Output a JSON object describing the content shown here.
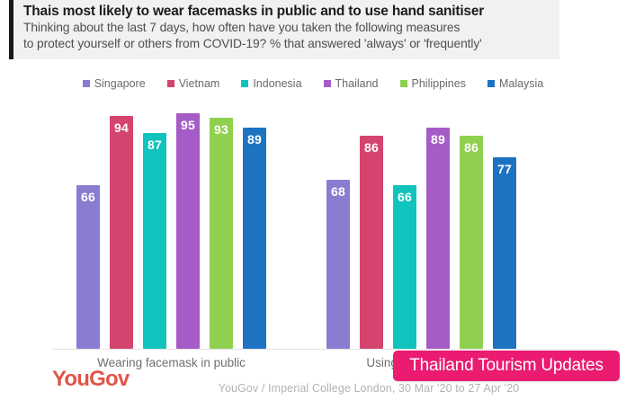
{
  "header": {
    "title": "Thais most likely to wear facemasks in public and to use hand sanitiser",
    "subtitle_line1": "Thinking about the last 7 days, how often have you taken the following measures",
    "subtitle_line2": "to protect yourself or others from COVID-19? % that answered 'always' or 'frequently'"
  },
  "chart_data": {
    "type": "bar",
    "categories": [
      "Wearing facemask in public",
      "Using hand sanitiser"
    ],
    "series": [
      {
        "name": "Singapore",
        "color": "#8b7bd1",
        "values": [
          66,
          68
        ]
      },
      {
        "name": "Vietnam",
        "color": "#d5446f",
        "values": [
          94,
          86
        ]
      },
      {
        "name": "Indonesia",
        "color": "#10c3bd",
        "values": [
          87,
          66
        ]
      },
      {
        "name": "Thailand",
        "color": "#a55cc7",
        "values": [
          95,
          89
        ]
      },
      {
        "name": "Philippines",
        "color": "#8fd04e",
        "values": [
          93,
          86
        ]
      },
      {
        "name": "Malaysia",
        "color": "#1d73c2",
        "values": [
          89,
          77
        ]
      }
    ],
    "ylim": [
      0,
      100
    ],
    "grid": false,
    "legend_position": "top",
    "value_labels": "inside-top",
    "axis_line_color": "#e2e2e2"
  },
  "footer": {
    "logo": "YouGov",
    "logo_color": "#e15549",
    "source": "YouGov / Imperial College London, 30 Mar '20 to 27 Apr '20"
  },
  "overlay": {
    "label": "Thailand Tourism Updates",
    "color": "#ea1b71"
  }
}
